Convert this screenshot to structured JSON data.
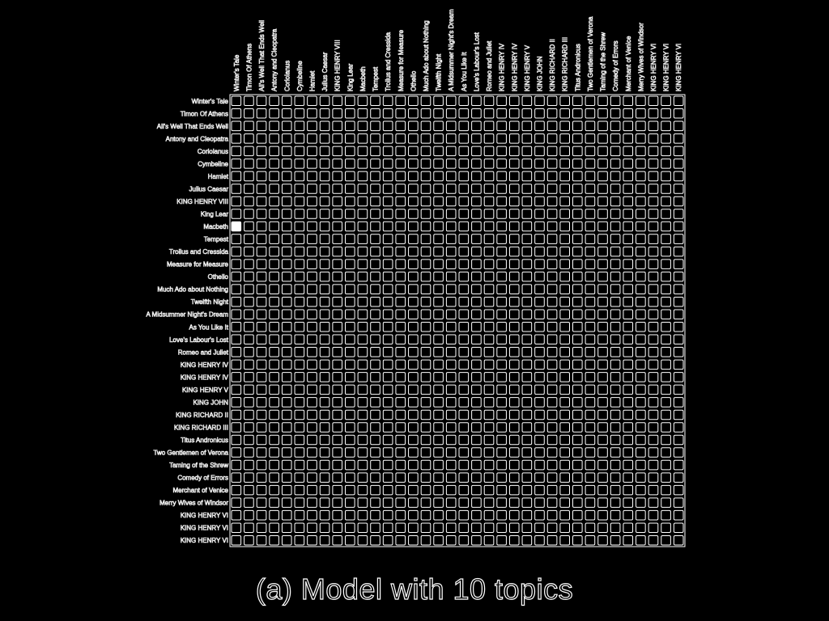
{
  "caption": "(a) Model with 10 topics",
  "chart_data": {
    "type": "heatmap",
    "title": "",
    "xlabel": "",
    "ylabel": "",
    "grid": true,
    "colors": {
      "background": "#000000",
      "cell_outline": "#ffffff",
      "filled_cell": "#ffffff"
    },
    "rows": [
      "Winter's Tale",
      "Timon Of Athens",
      "All's Well That Ends Well",
      "Antony and Cleopatra",
      "Coriolanus",
      "Cymbeline",
      "Hamlet",
      "Julius Caesar",
      "KING HENRY VIII",
      "King Lear",
      "Macbeth",
      "Tempest",
      "Troilus and Cressida",
      "Measure for Measure",
      "Othello",
      "Much Ado about Nothing",
      "Twelfth Night",
      "A Midsummer Night's Dream",
      "As You Like It",
      "Love's Labour's Lost",
      "Romeo and Juliet",
      "KING HENRY IV",
      "KING HENRY IV",
      "KING HENRY V",
      "KING JOHN",
      "KING RICHARD II",
      "KING RICHARD III",
      "Titus Andronicus",
      "Two Gentlemen of Verona",
      "Taming of the Shrew",
      "Comedy of Errors",
      "Merchant of Venice",
      "Merry Wives of Windsor",
      "KING HENRY VI",
      "KING HENRY VI",
      "KING HENRY VI"
    ],
    "columns": [
      "Winter's Tale",
      "Timon Of Athens",
      "All's Well That Ends Well",
      "Antony and Cleopatra",
      "Coriolanus",
      "Cymbeline",
      "Hamlet",
      "Julius Caesar",
      "KING HENRY VIII",
      "King Lear",
      "Macbeth",
      "Tempest",
      "Troilus and Cressida",
      "Measure for Measure",
      "Othello",
      "Much Ado about Nothing",
      "Twelfth Night",
      "A Midsummer Night's Dream",
      "As You Like It",
      "Love's Labour's Lost",
      "Romeo and Juliet",
      "KING HENRY IV",
      "KING HENRY IV",
      "KING HENRY V",
      "KING JOHN",
      "KING RICHARD II",
      "KING RICHARD III",
      "Titus Andronicus",
      "Two Gentlemen of Verona",
      "Taming of the Shrew",
      "Comedy of Errors",
      "Merchant of Venice",
      "Merry Wives of Windsor",
      "KING HENRY VI",
      "KING HENRY VI",
      "KING HENRY VI"
    ],
    "filled_cells": [
      [
        10,
        0
      ]
    ]
  }
}
